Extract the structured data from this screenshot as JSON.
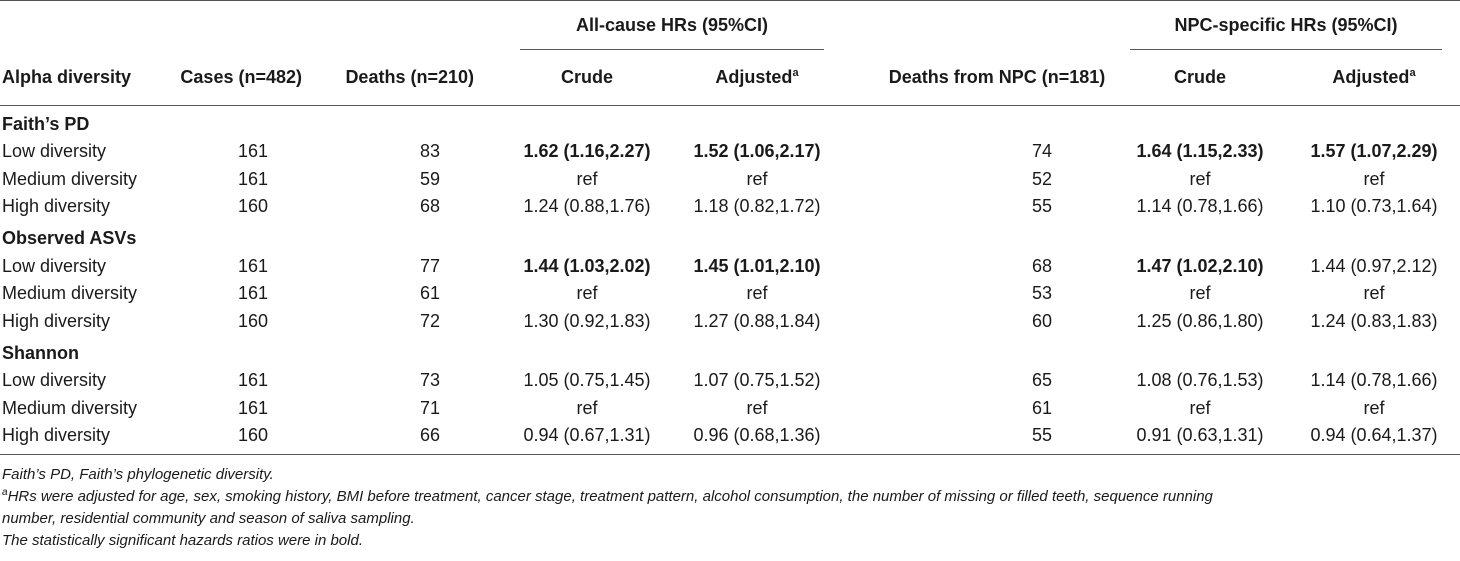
{
  "groups": {
    "all_cause": "All-cause HRs (95%CI)",
    "npc_specific": "NPC-specific HRs (95%CI)"
  },
  "headers": {
    "alpha": "Alpha diversity",
    "cases": "Cases (n=482)",
    "deaths": "Deaths (n=210)",
    "crude": "Crude",
    "adjusted": "Adjusted",
    "adjusted_sup": "a",
    "deaths_npc": "Deaths from NPC (n=181)",
    "crude2": "Crude",
    "adjusted2": "Adjusted",
    "adjusted2_sup": "a"
  },
  "sections": [
    {
      "title": "Faith’s PD",
      "rows": [
        {
          "label": "Low diversity",
          "cases": "161",
          "deaths": "83",
          "crude": "1.62 (1.16,2.27)",
          "adjusted": "1.52 (1.06,2.17)",
          "deaths_npc": "74",
          "crude2": "1.64 (1.15,2.33)",
          "adjusted2": "1.57 (1.07,2.29)"
        },
        {
          "label": "Medium diversity",
          "cases": "161",
          "deaths": "59",
          "crude": "ref",
          "adjusted": "ref",
          "deaths_npc": "52",
          "crude2": "ref",
          "adjusted2": "ref"
        },
        {
          "label": "High diversity",
          "cases": "160",
          "deaths": "68",
          "crude": "1.24 (0.88,1.76)",
          "adjusted": "1.18 (0.82,1.72)",
          "deaths_npc": "55",
          "crude2": "1.14 (0.78,1.66)",
          "adjusted2": "1.10 (0.73,1.64)"
        }
      ]
    },
    {
      "title": "Observed ASVs",
      "rows": [
        {
          "label": "Low diversity",
          "cases": "161",
          "deaths": "77",
          "crude": "1.44 (1.03,2.02)",
          "adjusted": "1.45 (1.01,2.10)",
          "deaths_npc": "68",
          "crude2": "1.47 (1.02,2.10)",
          "adjusted2": "1.44 (0.97,2.12)"
        },
        {
          "label": "Medium diversity",
          "cases": "161",
          "deaths": "61",
          "crude": "ref",
          "adjusted": "ref",
          "deaths_npc": "53",
          "crude2": "ref",
          "adjusted2": "ref"
        },
        {
          "label": "High diversity",
          "cases": "160",
          "deaths": "72",
          "crude": "1.30 (0.92,1.83)",
          "adjusted": "1.27 (0.88,1.84)",
          "deaths_npc": "60",
          "crude2": "1.25 (0.86,1.80)",
          "adjusted2": "1.24 (0.83,1.83)"
        }
      ]
    },
    {
      "title": "Shannon",
      "rows": [
        {
          "label": "Low diversity",
          "cases": "161",
          "deaths": "73",
          "crude": "1.05 (0.75,1.45)",
          "adjusted": "1.07 (0.75,1.52)",
          "deaths_npc": "65",
          "crude2": "1.08 (0.76,1.53)",
          "adjusted2": "1.14 (0.78,1.66)"
        },
        {
          "label": "Medium diversity",
          "cases": "161",
          "deaths": "71",
          "crude": "ref",
          "adjusted": "ref",
          "deaths_npc": "61",
          "crude2": "ref",
          "adjusted2": "ref"
        },
        {
          "label": "High diversity",
          "cases": "160",
          "deaths": "66",
          "crude": "0.94 (0.67,1.31)",
          "adjusted": "0.96 (0.68,1.36)",
          "deaths_npc": "55",
          "crude2": "0.91 (0.63,1.31)",
          "adjusted2": "0.94 (0.64,1.37)"
        }
      ]
    }
  ],
  "notes": {
    "abbrev": "Faith’s PD, Faith’s phylogenetic diversity.",
    "footnote_mark": "a",
    "footnote_line1": "HRs were adjusted for age, sex, smoking history, BMI before treatment, cancer stage, treatment pattern, alcohol consumption, the number of missing or filled teeth, sequence running",
    "footnote_line2": "number, residential community and season of saliva sampling.",
    "bold_note": "The statistically significant hazards ratios were in bold."
  }
}
